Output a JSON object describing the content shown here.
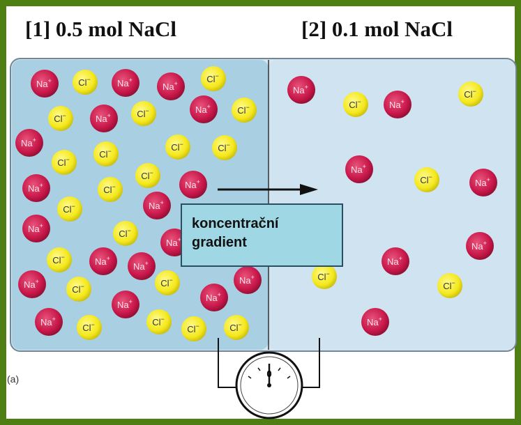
{
  "titles": {
    "left": "[1]  0.5 mol NaCl",
    "right": "[2]  0.1 mol NaCl"
  },
  "ion_labels": {
    "sodium": "Na",
    "sodium_superscript": "+",
    "chloride": "Cl",
    "chloride_superscript": "−"
  },
  "gradient_label": {
    "line1": "koncentrační",
    "line2": "gradient"
  },
  "panel_tag": "(a)",
  "meter_zero": "0",
  "colors": {
    "frame": "#4f7f14",
    "left_solution": "#a9cfe2",
    "right_solution": "#cfe3f0",
    "sodium": "#c8174a",
    "chloride": "#f4e81c",
    "gradient_box": "#9fd8e4"
  },
  "icons": {
    "arrow": "right-arrow-icon",
    "meter": "voltmeter-icon"
  }
}
